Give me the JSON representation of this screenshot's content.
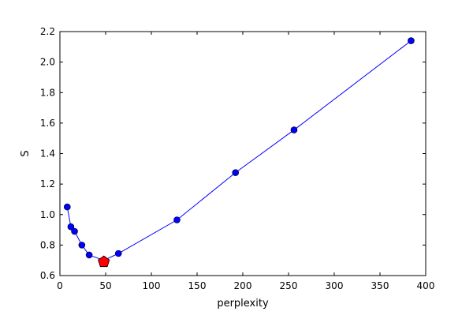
{
  "chart_data": {
    "type": "line",
    "title": "",
    "xlabel": "perplexity",
    "ylabel": "S",
    "xlim": [
      0,
      400
    ],
    "ylim": [
      0.6,
      2.2
    ],
    "x_ticks": [
      0,
      50,
      100,
      150,
      200,
      250,
      300,
      350,
      400
    ],
    "x_tick_labels": [
      "0",
      "50",
      "100",
      "150",
      "200",
      "250",
      "300",
      "350",
      "400"
    ],
    "y_ticks": [
      0.6,
      0.8,
      1.0,
      1.2,
      1.4,
      1.6,
      1.8,
      2.0,
      2.2
    ],
    "y_tick_labels": [
      "0.6",
      "0.8",
      "1.0",
      "1.2",
      "1.4",
      "1.6",
      "1.8",
      "2.0",
      "2.2"
    ],
    "grid": false,
    "legend": "none",
    "series": [
      {
        "color": "#0000ff",
        "marker": "circle",
        "x": [
          8,
          12,
          16,
          24,
          32,
          48,
          64,
          128,
          192,
          256,
          384
        ],
        "y": [
          1.05,
          0.92,
          0.89,
          0.8,
          0.735,
          0.7,
          0.745,
          0.965,
          1.275,
          1.555,
          2.14
        ]
      }
    ],
    "highlight": {
      "x": 48,
      "y": 0.69,
      "marker": "pentagon",
      "color": "#ff0000"
    }
  }
}
